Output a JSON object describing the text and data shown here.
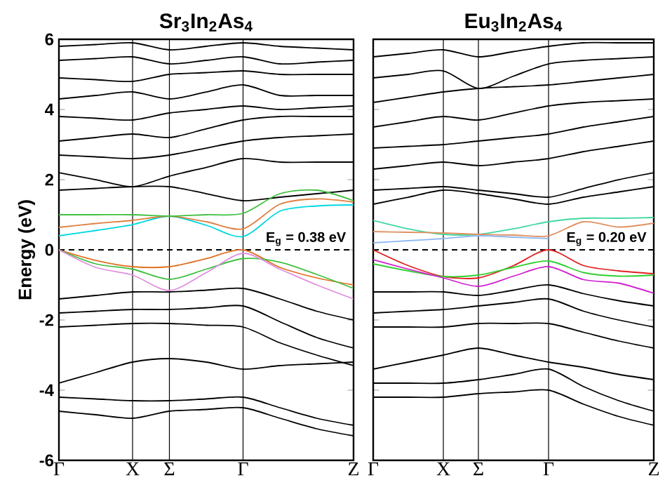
{
  "chart_data": [
    {
      "type": "line",
      "title": "Sr$_{3}$In$_{2}$As$_{4}$",
      "ylabel": "Energy (eV)",
      "categories": [
        "Γ",
        null,
        "X",
        "Σ",
        null,
        "Γ",
        null,
        null,
        "Z"
      ],
      "ylim": [
        -6,
        6
      ],
      "yticks": [
        -6,
        -4,
        -2,
        0,
        2,
        4,
        6
      ],
      "marker": "none",
      "line_style": "solid",
      "grid": "x",
      "ref_lines": [
        {
          "axis": "y",
          "value": 0,
          "color": "#000000",
          "line_style": "dashed"
        }
      ],
      "annotations": [
        "E$_{g}$ = 0.38 eV"
      ],
      "series": [
        {
          "color": "#000000",
          "values": [
            -3.8,
            -3.5,
            -3.2,
            -3.1,
            -3.2,
            -3.4,
            -3.3,
            -3.25,
            -3.2
          ]
        },
        {
          "color": "#000000",
          "values": [
            -4.2,
            -4.25,
            -4.3,
            -4.3,
            -4.25,
            -4.2,
            -4.5,
            -4.8,
            -5.0
          ]
        },
        {
          "color": "#000000",
          "values": [
            -4.6,
            -4.7,
            -4.8,
            -4.6,
            -4.55,
            -4.5,
            -4.8,
            -5.1,
            -5.3
          ]
        },
        {
          "color": "#000000",
          "values": [
            -2.2,
            -2.15,
            -2.1,
            -2.1,
            -2.15,
            -2.2,
            -2.65,
            -3.0,
            -3.3
          ]
        },
        {
          "color": "#000000",
          "values": [
            -1.8,
            -1.75,
            -1.7,
            -1.7,
            -1.65,
            -1.6,
            -2.05,
            -2.5,
            -2.8
          ]
        },
        {
          "color": "#000000",
          "values": [
            -1.4,
            -1.3,
            -1.2,
            -1.2,
            -1.15,
            -1.1,
            -1.4,
            -1.75,
            -2.0
          ]
        },
        {
          "color": "#000000",
          "values": [
            1.7,
            1.75,
            1.8,
            1.8,
            1.6,
            1.4,
            1.5,
            1.6,
            1.7
          ]
        },
        {
          "color": "#000000",
          "values": [
            2.2,
            2.0,
            1.8,
            2.1,
            2.35,
            2.6,
            2.5,
            2.5,
            2.5
          ]
        },
        {
          "color": "#000000",
          "values": [
            2.7,
            2.65,
            2.6,
            2.7,
            2.9,
            3.1,
            3.2,
            3.25,
            3.3
          ]
        },
        {
          "color": "#000000",
          "values": [
            3.1,
            3.2,
            3.3,
            3.2,
            3.45,
            3.7,
            3.8,
            3.8,
            3.8
          ]
        },
        {
          "color": "#000000",
          "values": [
            3.8,
            3.75,
            3.7,
            3.9,
            4.0,
            4.1,
            4.0,
            4.05,
            4.1
          ]
        },
        {
          "color": "#000000",
          "values": [
            4.3,
            4.4,
            4.5,
            4.3,
            4.5,
            4.7,
            4.4,
            4.4,
            4.4
          ]
        },
        {
          "color": "#000000",
          "values": [
            4.9,
            4.85,
            4.8,
            5.0,
            5.05,
            5.1,
            5.0,
            5.0,
            5.0
          ]
        },
        {
          "color": "#000000",
          "values": [
            5.4,
            5.45,
            5.5,
            5.3,
            5.4,
            5.5,
            5.3,
            5.35,
            5.4
          ]
        },
        {
          "color": "#000000",
          "values": [
            5.8,
            5.85,
            5.9,
            5.7,
            5.8,
            5.9,
            5.8,
            5.75,
            5.7
          ]
        },
        {
          "color": "#00d8e0",
          "values": [
            0.4,
            0.55,
            0.72,
            0.96,
            0.7,
            0.38,
            1.1,
            1.25,
            1.28
          ]
        },
        {
          "color": "#e08040",
          "values": [
            0.64,
            0.75,
            0.84,
            0.96,
            0.8,
            0.6,
            1.3,
            1.45,
            1.36
          ]
        },
        {
          "color": "#40c040",
          "values": [
            1.0,
            1.0,
            1.0,
            0.96,
            1.0,
            1.04,
            1.6,
            1.7,
            1.4
          ]
        },
        {
          "color": "#e07020",
          "values": [
            0,
            -0.3,
            -0.48,
            -0.48,
            -0.25,
            0,
            -0.5,
            -0.8,
            -1.0
          ]
        },
        {
          "color": "#40c040",
          "values": [
            0,
            -0.4,
            -0.55,
            -0.84,
            -0.55,
            -0.25,
            -0.35,
            -0.7,
            -1.1
          ]
        },
        {
          "color": "#e090e0",
          "values": [
            0,
            -0.5,
            -0.72,
            -1.16,
            -0.65,
            -0.1,
            -0.55,
            -1.0,
            -1.4
          ]
        }
      ]
    },
    {
      "type": "line",
      "title": "Eu$_{3}$In$_{2}$As$_{4}$",
      "categories": [
        "Γ",
        null,
        "X",
        "Σ",
        null,
        "Γ",
        null,
        null,
        "Z"
      ],
      "ylim": [
        -6,
        6
      ],
      "yticks": [
        -6,
        -4,
        -2,
        0,
        2,
        4,
        6
      ],
      "tick_labels": "x",
      "marker": "none",
      "line_style": "solid",
      "grid": "x",
      "ref_lines": [
        {
          "axis": "y",
          "value": 0,
          "color": "#000000",
          "line_style": "dashed"
        }
      ],
      "annotations": [
        "E$_{g}$ = 0.20 eV"
      ],
      "series": [
        {
          "color": "#000000",
          "values": [
            -3.4,
            -3.2,
            -3.0,
            -2.8,
            -3.0,
            -3.2,
            -3.35,
            -3.55,
            -3.7
          ]
        },
        {
          "color": "#000000",
          "values": [
            -3.8,
            -3.8,
            -3.8,
            -3.7,
            -3.55,
            -3.4,
            -3.9,
            -4.3,
            -4.6
          ]
        },
        {
          "color": "#000000",
          "values": [
            -4.2,
            -4.2,
            -4.2,
            -4.1,
            -4.05,
            -4.0,
            -4.4,
            -4.75,
            -5.0
          ]
        },
        {
          "color": "#000000",
          "values": [
            -2.2,
            -2.2,
            -2.2,
            -2.1,
            -2.1,
            -2.1,
            -2.35,
            -2.6,
            -2.8
          ]
        },
        {
          "color": "#000000",
          "values": [
            -1.8,
            -1.75,
            -1.7,
            -1.6,
            -1.5,
            -1.4,
            -1.75,
            -2.0,
            -2.2
          ]
        },
        {
          "color": "#000000",
          "values": [
            -1.2,
            -1.2,
            -1.2,
            -1.3,
            -1.15,
            -1.0,
            -1.25,
            -1.45,
            -1.6
          ]
        },
        {
          "color": "#000000",
          "values": [
            1.3,
            1.5,
            1.7,
            1.6,
            1.45,
            1.3,
            1.5,
            1.65,
            1.8
          ]
        },
        {
          "color": "#000000",
          "values": [
            1.7,
            1.75,
            1.8,
            1.7,
            1.6,
            1.5,
            1.75,
            2.0,
            2.2
          ]
        },
        {
          "color": "#000000",
          "values": [
            2.3,
            2.4,
            2.5,
            2.4,
            2.5,
            2.6,
            2.8,
            2.95,
            3.1
          ]
        },
        {
          "color": "#000000",
          "values": [
            2.9,
            2.95,
            3.0,
            3.1,
            3.2,
            3.3,
            3.5,
            3.65,
            3.8
          ]
        },
        {
          "color": "#000000",
          "values": [
            3.5,
            3.65,
            3.8,
            3.7,
            3.9,
            4.1,
            4.2,
            4.25,
            4.3
          ]
        },
        {
          "color": "#000000",
          "values": [
            4.2,
            4.35,
            4.5,
            4.6,
            4.65,
            4.7,
            4.8,
            4.9,
            5.0
          ]
        },
        {
          "color": "#000000",
          "values": [
            4.9,
            5.0,
            5.1,
            4.6,
            4.95,
            5.3,
            5.4,
            5.45,
            5.5
          ]
        },
        {
          "color": "#000000",
          "values": [
            5.5,
            5.6,
            5.7,
            5.5,
            5.65,
            5.8,
            5.9,
            5.9,
            5.9
          ]
        },
        {
          "color": "#40d8a0",
          "values": [
            0.84,
            0.6,
            0.44,
            0.44,
            0.6,
            0.8,
            0.9,
            0.9,
            0.92
          ]
        },
        {
          "color": "#e09060",
          "values": [
            0.52,
            0.5,
            0.48,
            0.44,
            0.42,
            0.4,
            0.8,
            0.65,
            0.76
          ]
        },
        {
          "color": "#90b8f0",
          "values": [
            0.2,
            0.26,
            0.32,
            0.4,
            0.36,
            0.32,
            null,
            null,
            null
          ]
        },
        {
          "color": "#e02020",
          "values": [
            0,
            -0.45,
            -0.76,
            -0.8,
            -0.45,
            0,
            -0.45,
            -0.6,
            -0.68
          ]
        },
        {
          "color": "#30d030",
          "values": [
            -0.4,
            -0.6,
            -0.76,
            -0.72,
            -0.5,
            -0.32,
            -0.65,
            -0.75,
            -0.72
          ]
        },
        {
          "color": "#d020d0",
          "values": [
            -0.28,
            -0.55,
            -0.8,
            -1.04,
            -0.75,
            -0.48,
            -0.85,
            -0.95,
            -1.24
          ]
        }
      ]
    }
  ]
}
